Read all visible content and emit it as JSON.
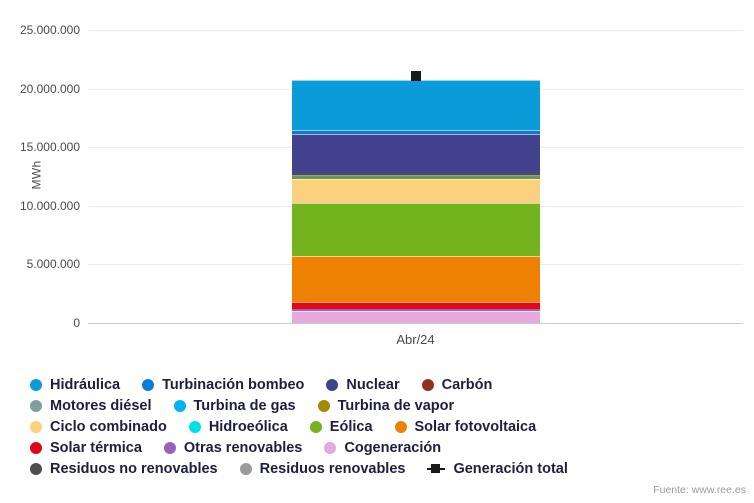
{
  "chart_data": {
    "type": "bar",
    "stacked": true,
    "title": "",
    "ylabel": "MWh",
    "xlabel": "",
    "categories": [
      "Abr/24"
    ],
    "ylim": [
      0,
      25000000
    ],
    "grid": true,
    "legend_position": "bottom",
    "yticks": [
      0,
      5000000,
      10000000,
      15000000,
      20000000,
      25000000
    ],
    "ytick_labels": [
      "0",
      "5.000.000",
      "10.000.000",
      "15.000.000",
      "20.000.000",
      "25.000.000"
    ],
    "series": [
      {
        "name": "Cogeneración",
        "slug": "cogeneracion",
        "color": "#e7a9dc",
        "value": 1050000
      },
      {
        "name": "Otras renovables",
        "slug": "otras-renovables",
        "color": "#9565bd",
        "value": 170000
      },
      {
        "name": "Solar térmica",
        "slug": "solar-termica",
        "color": "#e30613",
        "value": 600000
      },
      {
        "name": "Solar fotovoltaica",
        "slug": "solar-fotovoltaica",
        "color": "#ee8200",
        "value": 3900000
      },
      {
        "name": "Eólica",
        "slug": "eolica",
        "color": "#73b41e",
        "value": 4500000
      },
      {
        "name": "Hidroeólica",
        "slug": "hidroeolica",
        "color": "#00e2e2",
        "value": 2000
      },
      {
        "name": "Ciclo combinado",
        "slug": "ciclo-combinado",
        "color": "#fcd17e",
        "value": 2100000
      },
      {
        "name": "Turbina de vapor",
        "slug": "turbina-de-vapor",
        "color": "#a38b00",
        "value": 150000
      },
      {
        "name": "Turbina de gas",
        "slug": "turbina-de-gas",
        "color": "#00b4ef",
        "value": 40000
      },
      {
        "name": "Motores diésel",
        "slug": "motores-diesel",
        "color": "#809f9c",
        "value": 60000
      },
      {
        "name": "Residuos renovables",
        "slug": "residuos-renovables",
        "color": "#9a9a9a",
        "value": 80000
      },
      {
        "name": "Residuos no renovables",
        "slug": "residuos-no-renovables",
        "color": "#4f4f4f",
        "value": 120000
      },
      {
        "name": "Carbón",
        "slug": "carbon",
        "color": "#92301c",
        "value": 60000
      },
      {
        "name": "Nuclear",
        "slug": "nuclear",
        "color": "#42428f",
        "value": 3300000
      },
      {
        "name": "Turbinación bombeo",
        "slug": "turbinacion-bombeo",
        "color": "#0d7bd8",
        "value": 300000
      },
      {
        "name": "Hidráulica",
        "slug": "hidraulica",
        "color": "#0a9bd8",
        "value": 4300000
      }
    ],
    "total_marker": {
      "name": "Generación total",
      "slug": "generacion-total",
      "value": 21100000,
      "color": "#1a1a1a"
    },
    "legend_rows": [
      [
        {
          "label": "Hidráulica",
          "slug": "hidraulica",
          "color": "#0a9bd8",
          "marker": "circle"
        },
        {
          "label": "Turbinación bombeo",
          "slug": "turbinacion-bombeo",
          "color": "#0d7bd8",
          "marker": "circle"
        },
        {
          "label": "Nuclear",
          "slug": "nuclear",
          "color": "#42428f",
          "marker": "circle"
        },
        {
          "label": "Carbón",
          "slug": "carbon",
          "color": "#92301c",
          "marker": "circle"
        }
      ],
      [
        {
          "label": "Motores diésel",
          "slug": "motores-diesel",
          "color": "#809f9c",
          "marker": "circle"
        },
        {
          "label": "Turbina de gas",
          "slug": "turbina-de-gas",
          "color": "#00b4ef",
          "marker": "circle"
        },
        {
          "label": "Turbina de vapor",
          "slug": "turbina-de-vapor",
          "color": "#a38b00",
          "marker": "circle"
        }
      ],
      [
        {
          "label": "Ciclo combinado",
          "slug": "ciclo-combinado",
          "color": "#fcd17e",
          "marker": "circle"
        },
        {
          "label": "Hidroeólica",
          "slug": "hidroeolica",
          "color": "#00e2e2",
          "marker": "circle"
        },
        {
          "label": "Eólica",
          "slug": "eolica",
          "color": "#73b41e",
          "marker": "circle"
        },
        {
          "label": "Solar fotovoltaica",
          "slug": "solar-fotovoltaica",
          "color": "#ee8200",
          "marker": "circle"
        }
      ],
      [
        {
          "label": "Solar térmica",
          "slug": "solar-termica",
          "color": "#e30613",
          "marker": "circle"
        },
        {
          "label": "Otras renovables",
          "slug": "otras-renovables",
          "color": "#9565bd",
          "marker": "circle"
        },
        {
          "label": "Cogeneración",
          "slug": "cogeneracion",
          "color": "#e7a9dc",
          "marker": "circle"
        }
      ],
      [
        {
          "label": "Residuos no renovables",
          "slug": "residuos-no-renovables",
          "color": "#4f4f4f",
          "marker": "circle"
        },
        {
          "label": "Residuos renovables",
          "slug": "residuos-renovables",
          "color": "#9a9a9a",
          "marker": "circle"
        },
        {
          "label": "Generación total",
          "slug": "generacion-total",
          "color": "#1a1a1a",
          "marker": "square"
        }
      ]
    ]
  },
  "footer": {
    "source": "Fuente: www.ree.es"
  }
}
